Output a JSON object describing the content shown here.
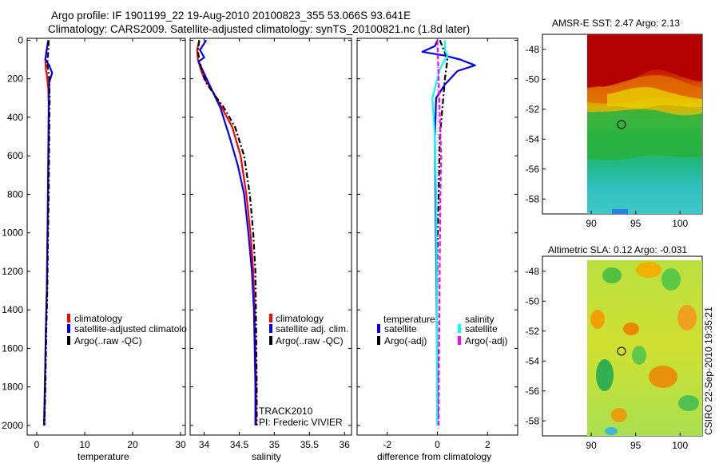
{
  "title": {
    "line1": "Argo profile: IF 1901199_22 19-Aug-2010 20100823_355 53.066S 93.641E",
    "line2": "Climatology: CARS2009. Satellite-adjusted climatology: synTS_20100821.nc (1.8d later)"
  },
  "colors": {
    "climatology": "#ff0000",
    "satellite": "#0000ff",
    "argo": "#000000",
    "satellite_salinity": "#00ffff",
    "argo_salinity_adj": "#ff00ff"
  },
  "chart_data": [
    {
      "type": "line",
      "name": "temperature-profile",
      "xlabel": "temperature",
      "ylabel": "",
      "xlim": [
        -2,
        31
      ],
      "ylim": [
        2050,
        -10
      ],
      "xticks": [
        0,
        10,
        20,
        30
      ],
      "yticks": [
        0,
        200,
        400,
        600,
        800,
        1000,
        1200,
        1400,
        1600,
        1800,
        2000
      ],
      "legend": [
        "climatology",
        "satellite-adjusted climatolo",
        "Argo(..raw -QC)"
      ],
      "series": [
        {
          "name": "climatology",
          "color": "#ff0000",
          "style": "solid",
          "x": [
            2.4,
            2.0,
            1.8,
            1.9,
            2.1,
            2.4,
            2.5,
            2.5,
            2.4,
            2.3,
            2.2,
            2.1,
            1.9,
            1.7,
            1.6
          ],
          "y": [
            0,
            60,
            100,
            150,
            180,
            250,
            350,
            500,
            700,
            900,
            1100,
            1300,
            1500,
            1800,
            2000
          ]
        },
        {
          "name": "satellite",
          "color": "#0000ff",
          "style": "solid",
          "x": [
            2.4,
            2.0,
            1.8,
            2.6,
            3.2,
            2.6,
            2.5,
            2.4,
            2.3,
            2.2,
            2.1,
            1.9,
            1.7,
            1.5
          ],
          "y": [
            0,
            60,
            100,
            130,
            170,
            220,
            350,
            600,
            900,
            1100,
            1300,
            1500,
            1800,
            2000
          ]
        },
        {
          "name": "Argo",
          "color": "#000000",
          "style": "dashdot",
          "x": [
            2.5,
            2.4,
            2.2,
            2.6,
            2.7,
            2.6,
            2.5,
            2.3,
            2.2,
            2.0,
            1.8,
            1.6
          ],
          "y": [
            0,
            60,
            120,
            200,
            300,
            500,
            800,
            1100,
            1300,
            1500,
            1800,
            2000
          ]
        }
      ]
    },
    {
      "type": "line",
      "name": "salinity-profile",
      "xlabel": "salinity",
      "xlim": [
        33.8,
        36.1
      ],
      "ylim": [
        2050,
        -10
      ],
      "xticks": [
        34,
        34.5,
        35,
        35.5,
        36
      ],
      "xticklabels": [
        "34",
        "34.5",
        "35",
        "35.5",
        "36"
      ],
      "legend": [
        "climatology",
        "satellite adj. clim.",
        "Argo(..raw -QC)"
      ],
      "annotations": [
        "TRACK2010",
        "PI: Frederic VIVIER"
      ],
      "series": [
        {
          "name": "climatology",
          "color": "#ff0000",
          "style": "solid",
          "x": [
            33.93,
            33.9,
            33.91,
            33.95,
            34.0,
            34.06,
            34.13,
            34.25,
            34.4,
            34.52,
            34.6,
            34.66,
            34.7,
            34.72,
            34.73,
            34.74,
            34.74
          ],
          "y": [
            0,
            50,
            100,
            150,
            200,
            230,
            270,
            350,
            450,
            600,
            800,
            1000,
            1200,
            1400,
            1600,
            1800,
            2000
          ]
        },
        {
          "name": "satellite",
          "color": "#0000ff",
          "style": "solid",
          "x": [
            34.03,
            33.94,
            34.0,
            33.92,
            34.01,
            34.1,
            34.23,
            34.36,
            34.48,
            34.57,
            34.63,
            34.68,
            34.71,
            34.72,
            34.73,
            34.73
          ],
          "y": [
            0,
            50,
            90,
            110,
            180,
            250,
            350,
            500,
            650,
            800,
            1000,
            1200,
            1400,
            1600,
            1800,
            2000
          ]
        },
        {
          "name": "Argo",
          "color": "#000000",
          "style": "dashdot",
          "x": [
            33.93,
            33.91,
            33.96,
            34.03,
            34.12,
            34.28,
            34.44,
            34.57,
            34.65,
            34.7,
            34.73,
            34.74,
            34.75,
            34.75
          ],
          "y": [
            0,
            60,
            150,
            220,
            270,
            350,
            450,
            600,
            800,
            1000,
            1200,
            1500,
            1800,
            2000
          ]
        }
      ]
    },
    {
      "type": "line",
      "name": "difference-profile",
      "xlabel": "difference from climatology",
      "xlim": [
        -3.2,
        3.2
      ],
      "ylim": [
        2050,
        -10
      ],
      "xticks": [
        -2,
        0,
        2
      ],
      "legend": {
        "temperature_heading": "temperature",
        "temperature": [
          "satellite",
          "Argo(-adj)"
        ],
        "salinity_heading": "salinity",
        "salinity": [
          "satellite",
          "Argo(-adj)"
        ]
      },
      "series": [
        {
          "name": "temperature satellite",
          "color": "#0000ff",
          "style": "solid",
          "x": [
            0.0,
            -0.1,
            -0.6,
            0.3,
            0.9,
            1.5,
            0.8,
            0.3,
            -0.05,
            -0.1,
            -0.08,
            -0.05,
            -0.03,
            -0.01,
            0.0
          ],
          "y": [
            0,
            30,
            60,
            80,
            100,
            130,
            160,
            230,
            300,
            500,
            800,
            1100,
            1400,
            1700,
            2000
          ]
        },
        {
          "name": "temperature Argo(-adj)",
          "color": "#000000",
          "style": "dashdot",
          "x": [
            0.1,
            0.4,
            0.3,
            0.2,
            0.1,
            0.05,
            0.0,
            -0.02,
            0.0,
            0.02
          ],
          "y": [
            0,
            100,
            200,
            350,
            500,
            800,
            1100,
            1400,
            1700,
            2000
          ]
        },
        {
          "name": "salinity satellite",
          "color": "#00ffff",
          "style": "solid",
          "x": [
            0.3,
            0.3,
            0.4,
            0.1,
            -0.2,
            -0.1,
            -0.05,
            -0.03,
            -0.02,
            -0.02,
            -0.01
          ],
          "y": [
            0,
            50,
            80,
            150,
            300,
            500,
            800,
            1100,
            1400,
            1700,
            2000
          ]
        },
        {
          "name": "salinity Argo(-adj)",
          "color": "#ff00ff",
          "style": "dashed",
          "x": [
            0.0,
            0.05,
            0.1,
            0.15,
            0.12,
            0.1,
            0.08,
            0.06,
            0.05
          ],
          "y": [
            0,
            200,
            400,
            600,
            800,
            1100,
            1400,
            1700,
            2000
          ]
        }
      ]
    },
    {
      "type": "heatmap",
      "name": "sst-map",
      "title": "AMSR-E SST: 2.47 Argo: 2.13",
      "xlim": [
        84.5,
        102.5
      ],
      "ylim": [
        -59,
        -47
      ],
      "xticks": [
        90,
        95,
        100
      ],
      "yticks": [
        -48,
        -50,
        -52,
        -54,
        -56,
        -58
      ],
      "argo_position": {
        "lon": 93.641,
        "lat": -53.066
      },
      "data_lon_range": [
        90,
        102.5
      ]
    },
    {
      "type": "heatmap",
      "name": "sla-map",
      "title": "Altimetric SLA: 0.12 Argo: -0.031",
      "xlim": [
        84.5,
        102.5
      ],
      "ylim": [
        -59,
        -47
      ],
      "xticks": [
        90,
        95,
        100
      ],
      "yticks": [
        -48,
        -50,
        -52,
        -54,
        -56,
        -58
      ],
      "argo_position": {
        "lon": 93.641,
        "lat": -53.066
      },
      "data_lon_range": [
        90,
        102.5
      ]
    }
  ],
  "side_label": "CSIRO 22-Sep-2010 19:35:21"
}
